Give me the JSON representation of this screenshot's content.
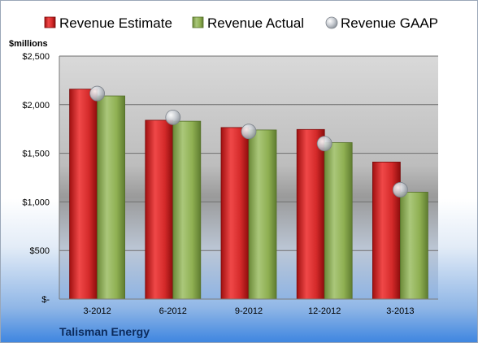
{
  "chart_data": {
    "type": "bar",
    "categories": [
      "3-2012",
      "6-2012",
      "9-2012",
      "12-2012",
      "3-2013"
    ],
    "series": [
      {
        "name": "Revenue Estimate",
        "type": "bar",
        "color": "#d42a2a",
        "values": [
          2160,
          1840,
          1765,
          1745,
          1410
        ]
      },
      {
        "name": "Revenue Actual",
        "type": "bar",
        "color": "#8fb052",
        "values": [
          2090,
          1830,
          1740,
          1610,
          1100
        ]
      },
      {
        "name": "Revenue GAAP",
        "type": "scatter",
        "color": "#bfc3c9",
        "values": [
          2115,
          1870,
          1725,
          1600,
          1125
        ]
      }
    ],
    "ylabel": "$millions",
    "ylim": [
      0,
      2500
    ],
    "yticks": [
      0,
      500,
      1000,
      1500,
      2000,
      2500
    ],
    "ytick_labels": [
      "$-",
      "$500",
      "$1,000",
      "$1,500",
      "$2,000",
      "$2,500"
    ],
    "grid": true,
    "legend_position": "top"
  },
  "footer": {
    "company": "Talisman Energy"
  }
}
